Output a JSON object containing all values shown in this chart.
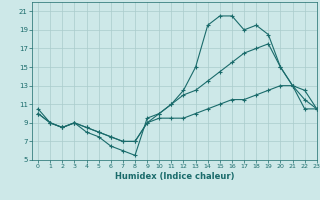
{
  "xlabel": "Humidex (Indice chaleur)",
  "background_color": "#cde8e8",
  "grid_color": "#aacccc",
  "line_color": "#1a6b6b",
  "xlim": [
    -0.5,
    23
  ],
  "ylim": [
    5,
    22
  ],
  "xtick_labels": [
    "0",
    "1",
    "2",
    "3",
    "4",
    "5",
    "6",
    "7",
    "8",
    "9",
    "10",
    "11",
    "12",
    "13",
    "14",
    "15",
    "16",
    "17",
    "18",
    "19",
    "20",
    "21",
    "22",
    "23"
  ],
  "xtick_vals": [
    0,
    1,
    2,
    3,
    4,
    5,
    6,
    7,
    8,
    9,
    10,
    11,
    12,
    13,
    14,
    15,
    16,
    17,
    18,
    19,
    20,
    21,
    22,
    23
  ],
  "yticks": [
    5,
    7,
    9,
    11,
    13,
    15,
    17,
    19,
    21
  ],
  "series": [
    {
      "x": [
        0,
        1,
        2,
        3,
        4,
        5,
        6,
        7,
        8,
        9,
        10,
        11,
        12,
        13,
        14,
        15,
        16,
        17,
        18,
        19,
        20,
        21,
        22,
        23
      ],
      "y": [
        10.0,
        9.0,
        8.5,
        9.0,
        8.5,
        8.0,
        7.5,
        7.0,
        7.0,
        9.0,
        9.5,
        9.5,
        9.5,
        10.0,
        10.5,
        11.0,
        11.5,
        11.5,
        12.0,
        12.5,
        13.0,
        13.0,
        10.5,
        10.5
      ]
    },
    {
      "x": [
        0,
        1,
        2,
        3,
        4,
        5,
        6,
        7,
        8,
        9,
        10,
        11,
        12,
        13,
        14,
        15,
        16,
        17,
        18,
        19,
        20,
        21,
        22,
        23
      ],
      "y": [
        10.0,
        9.0,
        8.5,
        9.0,
        8.5,
        8.0,
        7.5,
        7.0,
        7.0,
        9.0,
        10.0,
        11.0,
        12.0,
        12.5,
        13.5,
        14.5,
        15.5,
        16.5,
        17.0,
        17.5,
        15.0,
        13.0,
        12.5,
        10.5
      ]
    },
    {
      "x": [
        0,
        1,
        2,
        3,
        4,
        5,
        6,
        7,
        8,
        9,
        10,
        11,
        12,
        13,
        14,
        15,
        16,
        17,
        18,
        19,
        20,
        21,
        22,
        23
      ],
      "y": [
        10.5,
        9.0,
        8.5,
        9.0,
        8.0,
        7.5,
        6.5,
        6.0,
        5.5,
        9.5,
        10.0,
        11.0,
        12.5,
        15.0,
        19.5,
        20.5,
        20.5,
        19.0,
        19.5,
        18.5,
        15.0,
        13.0,
        11.5,
        10.5
      ]
    }
  ]
}
